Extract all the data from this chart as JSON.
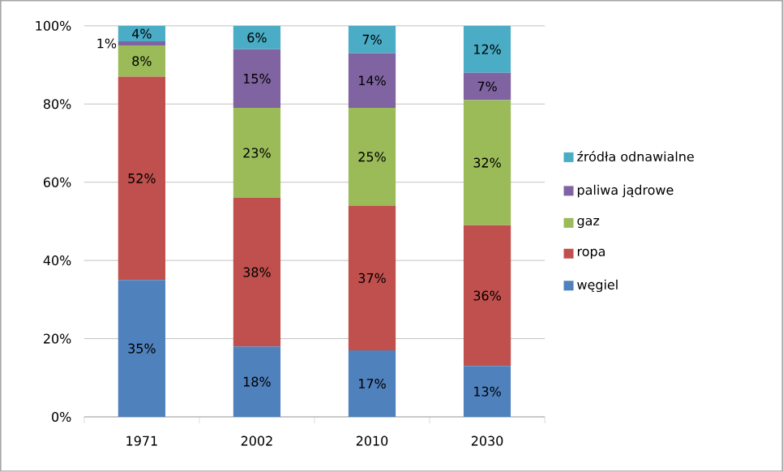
{
  "chart_data": {
    "type": "bar",
    "stacked": true,
    "categories": [
      "1971",
      "2002",
      "2010",
      "2030"
    ],
    "series": [
      {
        "name": "węgiel",
        "color": "#4f81bd",
        "values": [
          35,
          18,
          17,
          13
        ],
        "value_labels": [
          "35%",
          "18%",
          "17%",
          "13%"
        ]
      },
      {
        "name": "ropa",
        "color": "#c0504d",
        "values": [
          52,
          38,
          37,
          36
        ],
        "value_labels": [
          "52%",
          "38%",
          "37%",
          "36%"
        ]
      },
      {
        "name": "gaz",
        "color": "#9bbb59",
        "values": [
          8,
          23,
          25,
          32
        ],
        "value_labels": [
          "8%",
          "23%",
          "25%",
          "32%"
        ]
      },
      {
        "name": "paliwa jądrowe",
        "color": "#8064a2",
        "values": [
          1,
          15,
          14,
          7
        ],
        "value_labels": [
          "1%",
          "15%",
          "14%",
          "7%"
        ]
      },
      {
        "name": "źródła odnawialne",
        "color": "#4bacc6",
        "values": [
          4,
          6,
          7,
          12
        ],
        "value_labels": [
          "4%",
          "6%",
          "7%",
          "12%"
        ]
      }
    ],
    "ylim": [
      0,
      100
    ],
    "yticks": [
      {
        "value": 0,
        "label": "0%"
      },
      {
        "value": 20,
        "label": "20%"
      },
      {
        "value": 40,
        "label": "40%"
      },
      {
        "value": 60,
        "label": "60%"
      },
      {
        "value": 80,
        "label": "80%"
      },
      {
        "value": 100,
        "label": "100%"
      }
    ],
    "grid": "y",
    "legend": "right"
  }
}
